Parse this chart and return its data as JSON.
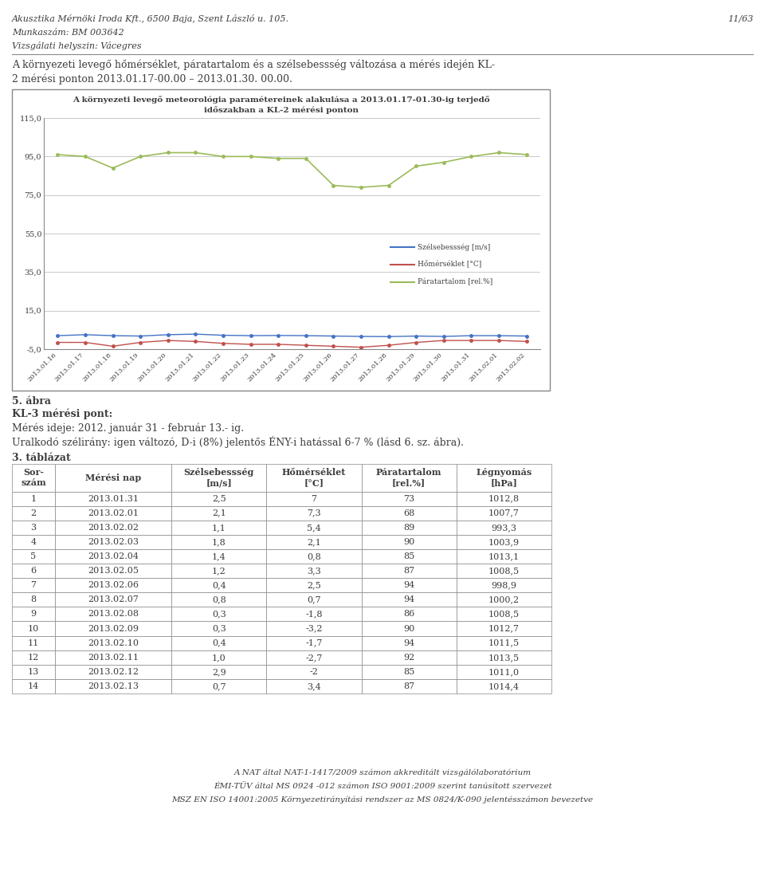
{
  "header_line1": "Akusztika Mérnöki Iroda Kft., 6500 Baja, Szent László u. 105.",
  "header_page": "11/63",
  "header_line2": "Munkaszám: BM 003642",
  "header_line3": "Vizsgálati helyszin: Vácegres",
  "intro_text1": "A környezeti levegő hőmérséklet, páratartalom és a szélsebessség változása a mérés idején KL-",
  "intro_text2": "2 mérési ponton 2013.01.17-00.00 – 2013.01.30. 00.00.",
  "chart_title_line1": "A környezeti levegő meteorológia paramétereinek alakulása a 2013.01.17-01.30-ig terjedő",
  "chart_title_line2": "időszakban a KL-2 mérési ponton",
  "x_labels": [
    "2013.01.16",
    "2013.01.17",
    "2013.01.18",
    "2013.01.19",
    "2013.01.20",
    "2013.01.21",
    "2013.01.22",
    "2013.01.23",
    "2013.01.24",
    "2013.01.25",
    "2013.01.26",
    "2013.01.27",
    "2013.01.28",
    "2013.01.29",
    "2013.01.30",
    "2013.01.31",
    "2013.02.01",
    "2013.02.02"
  ],
  "szelsebesseg": [
    2.0,
    2.5,
    2.0,
    1.8,
    2.5,
    2.8,
    2.2,
    2.0,
    2.1,
    2.0,
    1.8,
    1.6,
    1.5,
    1.8,
    1.6,
    2.0,
    2.0,
    1.8
  ],
  "homerseklet": [
    -1.5,
    -1.5,
    -3.5,
    -1.5,
    -0.5,
    -1.0,
    -2.0,
    -2.5,
    -2.5,
    -3.0,
    -3.5,
    -4.0,
    -3.0,
    -1.5,
    -0.5,
    -0.5,
    -0.5,
    -1.0
  ],
  "paratartalom": [
    96.0,
    95.0,
    89.0,
    95.0,
    97.0,
    97.0,
    95.0,
    95.0,
    94.0,
    94.0,
    80.0,
    79.0,
    80.0,
    90.0,
    92.0,
    95.0,
    97.0,
    96.0
  ],
  "ylim": [
    -5.0,
    115.0
  ],
  "yticks": [
    -5.0,
    15.0,
    35.0,
    55.0,
    75.0,
    95.0,
    115.0
  ],
  "legend_szelsebesseg": "Szélsebessség [m/s]",
  "legend_homerseklet": "Hőmérséklet [°C]",
  "legend_paratartalom": "Páratartalom [rel.%]",
  "color_szelsebesseg": "#4472C4",
  "color_homerseklet": "#C0504D",
  "color_paratartalom": "#9BBB59",
  "caption_line1": "5. ábra",
  "caption_line2": "KL-3 mérési pont:",
  "caption_line3": "Mérés ideje: 2012. január 31 - február 13.- ig.",
  "caption_line4": "Uralkodó szélirány: igen változó, D-i (8%) jelentős ÉNY-i hatással 6-7 % (lásd 6. sz. ábra).",
  "table_title": "3. táblázat",
  "table_col0": "Sor-\nszám",
  "table_col1": "Mérési nap",
  "table_col2": "Szélsebessség\n[m/s]",
  "table_col3": "Hőmérséklet\n[°C]",
  "table_col4": "Páratartalom\n[rel.%]",
  "table_col5": "Légnyomás\n[hPa]",
  "table_data": [
    [
      "1",
      "2013.01.31",
      "2,5",
      "7",
      "73",
      "1012,8"
    ],
    [
      "2",
      "2013.02.01",
      "2,1",
      "7,3",
      "68",
      "1007,7"
    ],
    [
      "3",
      "2013.02.02",
      "1,1",
      "5,4",
      "89",
      "993,3"
    ],
    [
      "4",
      "2013.02.03",
      "1,8",
      "2,1",
      "90",
      "1003,9"
    ],
    [
      "5",
      "2013.02.04",
      "1,4",
      "0,8",
      "85",
      "1013,1"
    ],
    [
      "6",
      "2013.02.05",
      "1,2",
      "3,3",
      "87",
      "1008,5"
    ],
    [
      "7",
      "2013.02.06",
      "0,4",
      "2,5",
      "94",
      "998,9"
    ],
    [
      "8",
      "2013.02.07",
      "0,8",
      "0,7",
      "94",
      "1000,2"
    ],
    [
      "9",
      "2013.02.08",
      "0,3",
      "-1,8",
      "86",
      "1008,5"
    ],
    [
      "10",
      "2013.02.09",
      "0,3",
      "-3,2",
      "90",
      "1012,7"
    ],
    [
      "11",
      "2013.02.10",
      "0,4",
      "-1,7",
      "94",
      "1011,5"
    ],
    [
      "12",
      "2013.02.11",
      "1,0",
      "-2,7",
      "92",
      "1013,5"
    ],
    [
      "13",
      "2013.02.12",
      "2,9",
      "-2",
      "85",
      "1011,0"
    ],
    [
      "14",
      "2013.02.13",
      "0,7",
      "3,4",
      "87",
      "1014,4"
    ]
  ],
  "footer_line1": "A NAT által NAT-1-1417/2009 számon akkreditált vizsgálólaboratórium",
  "footer_line2": "ÉMI-TÜV által MS 0924 -012 számon ISO 9001:2009 szerint tanúsított szervezet",
  "footer_line3": "MSZ EN ISO 14001:2005 Környezetirányítási rendszer az MS 0824/K-090 jelentésszámon bevezetve",
  "bg_color": "#ffffff",
  "grid_color": "#C0C0C0",
  "text_color": "#3C3C3C",
  "border_color": "#888888"
}
